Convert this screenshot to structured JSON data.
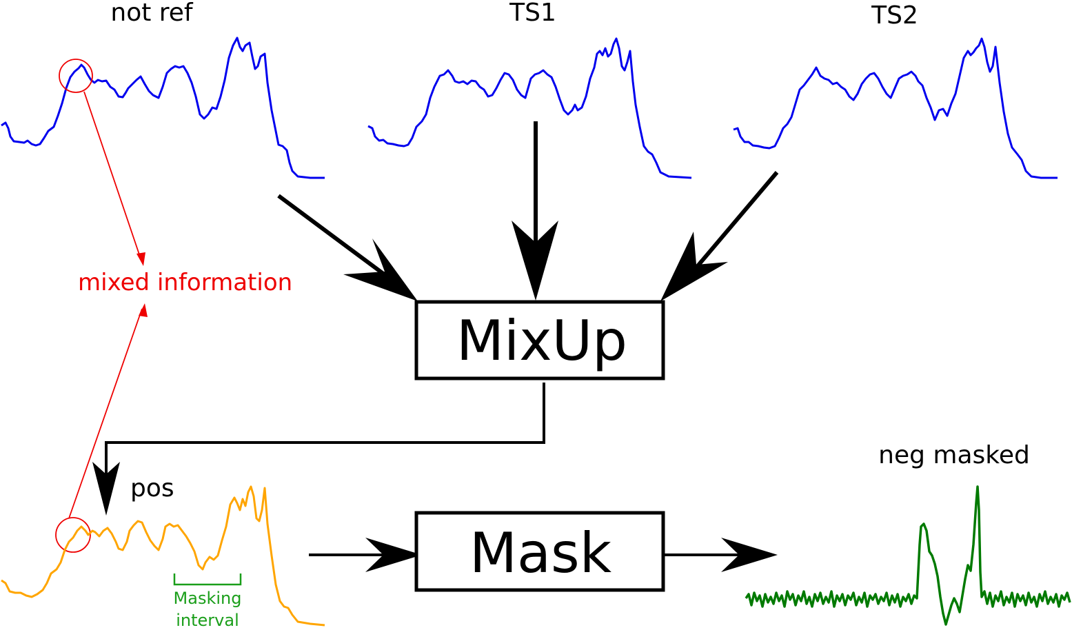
{
  "labels": {
    "not_ref": "not ref",
    "ts1": "TS1",
    "ts2": "TS2",
    "mixed_information": "mixed information",
    "mixup": "MixUp",
    "mask": "Mask",
    "pos": "pos",
    "neg_masked": "neg masked",
    "masking_interval_line1": "Masking",
    "masking_interval_line2": "interval"
  },
  "colors": {
    "series_blue": "#0000ee",
    "series_orange": "#ffa500",
    "series_green": "#007a00",
    "annotation_red": "#ee0000",
    "masking_green": "#1a9e1a",
    "stroke": "#000000"
  }
}
